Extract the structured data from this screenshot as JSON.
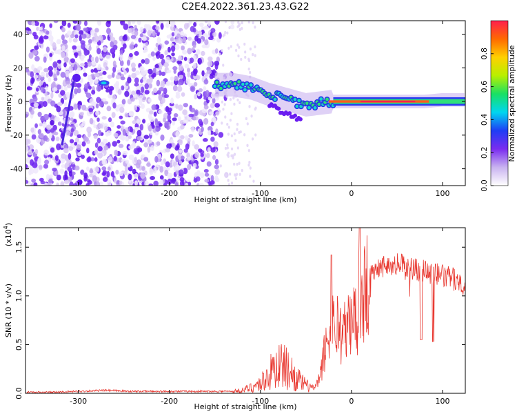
{
  "title": "C2E4.2022.361.23.43.G22",
  "colors": {
    "snr_line": "#e8372f",
    "colorbar": [
      "#ffffff",
      "#c9b3f0",
      "#7a2cf0",
      "#1f3df5",
      "#00d6f0",
      "#19e064",
      "#b8f000",
      "#ffd000",
      "#ff6a00",
      "#ff1f4d"
    ]
  },
  "chart_data": [
    {
      "type": "heatmap",
      "xlabel": "Height of straight line (km)",
      "ylabel": "Frequency (Hz)",
      "xlim": [
        -358,
        125
      ],
      "ylim": [
        -50,
        48
      ],
      "x_ticks": [
        -300,
        -200,
        -100,
        0,
        100
      ],
      "x_tick_labels": [
        "-300",
        "-200",
        "-100",
        "0",
        "100"
      ],
      "y_ticks": [
        -40,
        -20,
        0,
        20,
        40
      ],
      "y_tick_labels": [
        "-40",
        "-20",
        "0",
        "20",
        "40"
      ],
      "noise_region_end_x": -145,
      "ridge": {
        "x": [
          -150,
          -130,
          -110,
          -90,
          -70,
          -50,
          -35,
          -20,
          0,
          20,
          50,
          80,
          100,
          125
        ],
        "y": [
          10,
          10,
          8,
          4,
          1,
          -2,
          -1,
          0,
          0,
          0,
          0,
          0,
          1,
          1
        ]
      },
      "colorbar": {
        "label": "Normalized spectral amplitude",
        "range": [
          0.0,
          1.0
        ],
        "ticks": [
          0.0,
          0.2,
          0.4,
          0.6,
          0.8
        ],
        "tick_labels": [
          "0.0",
          "0.2",
          "0.4",
          "0.6",
          "0.8"
        ]
      }
    },
    {
      "type": "line",
      "xlabel": "Height of straight line (km)",
      "ylabel": "SNR (10 * v/v)",
      "y_multiplier_label": "(x10",
      "y_multiplier_exp": "4",
      "y_multiplier_close": ")",
      "xlim": [
        -358,
        125
      ],
      "ylim": [
        0,
        1.7
      ],
      "x_ticks": [
        -300,
        -200,
        -100,
        0,
        100
      ],
      "x_tick_labels": [
        "-300",
        "-200",
        "-100",
        "0",
        "100"
      ],
      "y_ticks": [
        0.0,
        0.5,
        1.0,
        1.5
      ],
      "y_tick_labels": [
        "0.0",
        "0.5",
        "1.0",
        "1.5"
      ],
      "series": [
        {
          "x": [
            -358,
            -330,
            -300,
            -270,
            -240,
            -200,
            -160,
            -130,
            -120,
            -110,
            -100,
            -90,
            -80,
            -70,
            -60,
            -50,
            -40,
            -35,
            -30,
            -25,
            -20,
            -15,
            -10,
            -5,
            0,
            5,
            10,
            15,
            20,
            25,
            30,
            40,
            50,
            60,
            70,
            80,
            90,
            100,
            110,
            120,
            125
          ],
          "y": [
            0.01,
            0.01,
            0.02,
            0.03,
            0.02,
            0.02,
            0.02,
            0.02,
            0.03,
            0.06,
            0.1,
            0.2,
            0.3,
            0.25,
            0.15,
            0.08,
            0.05,
            0.15,
            0.4,
            0.6,
            0.7,
            0.7,
            0.6,
            0.65,
            0.75,
            0.8,
            0.95,
            1.1,
            1.2,
            1.28,
            1.3,
            1.32,
            1.33,
            1.3,
            1.28,
            1.25,
            1.24,
            1.2,
            1.18,
            1.14,
            1.12
          ]
        }
      ]
    }
  ]
}
